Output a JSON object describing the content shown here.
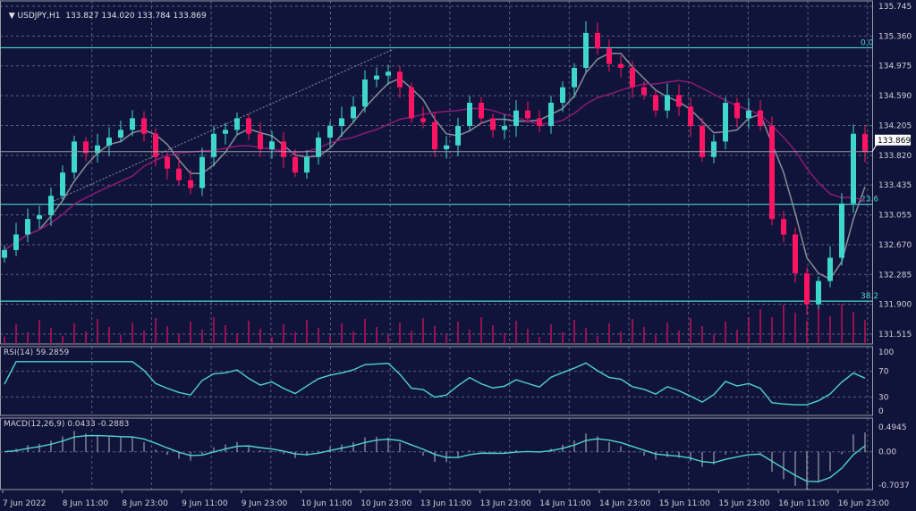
{
  "header": {
    "symbol": "USDJPY,H1",
    "open": "133.827",
    "high": "134.020",
    "low": "133.784",
    "close": "133.869"
  },
  "colors": {
    "background": "#10143a",
    "bull": "#3fd6cc",
    "bear": "#ff1464",
    "fib": "#4fd4cc",
    "ma_fast": "#8c8c96",
    "ma_slow": "#8c1a78",
    "volume": "#c0105a",
    "indicator": "#4fd4cc"
  },
  "chart_data": [
    {
      "type": "candlestick",
      "title": "USDJPY,H1",
      "price_axis": [
        "135.745",
        "135.360",
        "134.975",
        "134.590",
        "134.205",
        "133.820",
        "133.435",
        "133.055",
        "132.670",
        "132.285",
        "131.900",
        "131.515"
      ],
      "ylim": [
        131.515,
        135.745
      ],
      "current_price": "133.869",
      "time_axis": [
        "7 Jun 2022",
        "8 Jun 11:00",
        "8 Jun 23:00",
        "9 Jun 11:00",
        "9 Jun 23:00",
        "10 Jun 11:00",
        "10 Jun 23:00",
        "13 Jun 11:00",
        "13 Jun 23:00",
        "14 Jun 11:00",
        "14 Jun 23:00",
        "15 Jun 11:00",
        "15 Jun 23:00",
        "16 Jun 11:00",
        "16 Jun 23:00"
      ],
      "closes": [
        132.6,
        132.8,
        133.0,
        133.05,
        133.3,
        133.6,
        134.0,
        133.85,
        133.95,
        134.05,
        134.15,
        134.3,
        134.1,
        133.8,
        133.65,
        133.5,
        133.4,
        133.8,
        134.1,
        134.15,
        134.3,
        134.1,
        133.9,
        134.0,
        133.8,
        133.6,
        133.8,
        134.05,
        134.2,
        134.3,
        134.45,
        134.8,
        134.85,
        134.9,
        134.7,
        134.3,
        134.25,
        133.9,
        133.95,
        134.2,
        134.5,
        134.3,
        134.15,
        134.2,
        134.4,
        134.3,
        134.2,
        134.5,
        134.7,
        134.95,
        135.4,
        135.2,
        135.0,
        134.95,
        134.7,
        134.6,
        134.4,
        134.6,
        134.45,
        134.2,
        133.8,
        134.0,
        134.5,
        134.3,
        134.4,
        134.2,
        133.0,
        132.8,
        132.3,
        131.9,
        132.2,
        132.5,
        133.2,
        134.1,
        133.869
      ],
      "fibonacci": [
        {
          "label": "0.0",
          "price": 135.21
        },
        {
          "label": "23.6",
          "price": 133.19
        },
        {
          "label": "38.2",
          "price": 131.94
        }
      ],
      "grid": true
    },
    {
      "type": "line",
      "title": "RSI(14) 59.2859",
      "ticks": [
        "100",
        "70",
        "30",
        "0"
      ],
      "ylim": [
        0,
        100
      ],
      "value": 59.2859
    },
    {
      "type": "line",
      "title": "MACD(12,26,9) 0.0433 -0.2883",
      "ticks": [
        "0.4945",
        "0.00",
        "-0.7037"
      ],
      "ylim": [
        -0.7037,
        0.4945
      ]
    }
  ]
}
